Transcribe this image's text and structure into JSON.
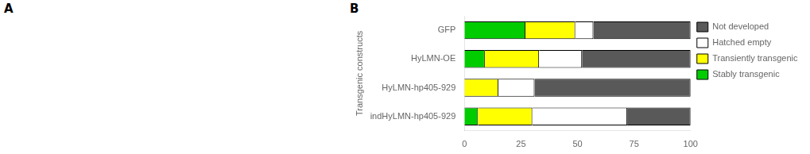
{
  "chart_data": {
    "type": "bar",
    "orientation": "horizontal",
    "stacked": true,
    "categories": [
      "GFP",
      "HyLMN-OE",
      "HyLMN-hp405-929",
      "indHyLMN-hp405-929"
    ],
    "series": [
      {
        "name": "Stably transgenic",
        "color": "#00cc00",
        "values": [
          27,
          9,
          0,
          6
        ]
      },
      {
        "name": "Transiently transgenic",
        "color": "#ffff00",
        "values": [
          22,
          24,
          15,
          24
        ]
      },
      {
        "name": "Hatched empty",
        "color": "#ffffff",
        "values": [
          8,
          19,
          16,
          42
        ]
      },
      {
        "name": "Not developed",
        "color": "#595959",
        "values": [
          43,
          48,
          69,
          28
        ]
      }
    ],
    "ylabel": "Transgenic constructs",
    "xlim": [
      0,
      100
    ],
    "xticks": [
      0,
      25,
      50,
      75,
      100
    ],
    "grid": false,
    "legend": "right",
    "annotations": [
      "A",
      "B"
    ]
  }
}
